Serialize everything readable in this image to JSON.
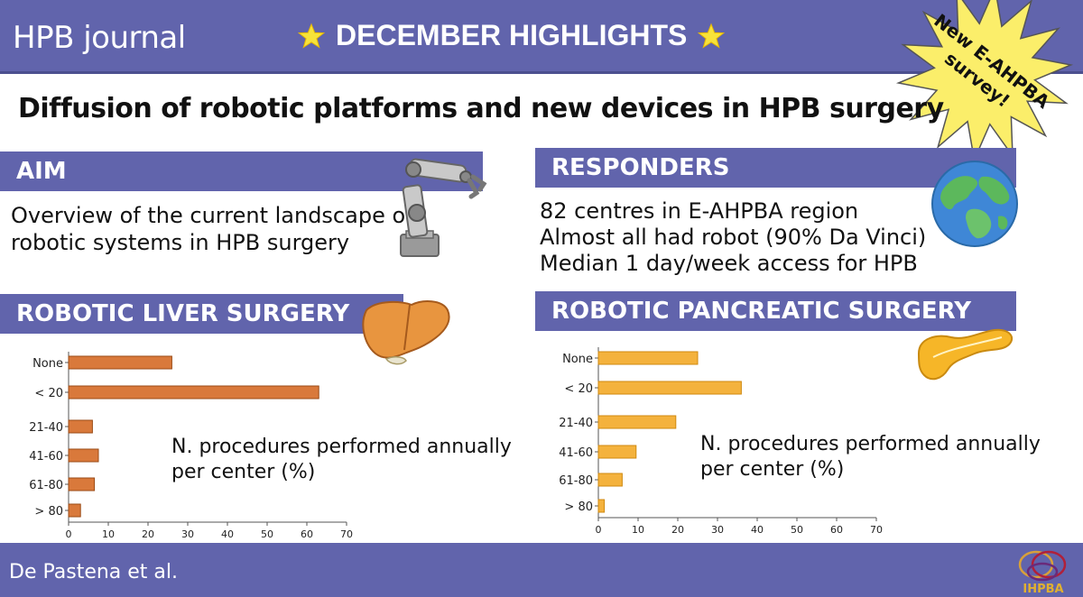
{
  "header": {
    "journal": "HPB journal",
    "highlights": "DECEMBER HIGHLIGHTS",
    "burst": [
      "New E-AHPBA",
      "survey!"
    ]
  },
  "title": "Diffusion of robotic platforms and new devices in HPB surgery",
  "aim": {
    "heading": "AIM",
    "lines": [
      "Overview of the current landscape of",
      "robotic systems in HPB surgery"
    ]
  },
  "responders": {
    "heading": "RESPONDERS",
    "lines": [
      "82 centres in E-AHPBA region",
      "Almost all had robot (90% Da Vinci)",
      "Median 1 day/week access for HPB"
    ]
  },
  "liver": {
    "heading": "ROBOTIC LIVER SURGERY",
    "caption": [
      "N. procedures performed annually",
      "per center (%)"
    ]
  },
  "pancreas": {
    "heading": "ROBOTIC PANCREATIC SURGERY",
    "caption": [
      "N. procedures performed annually",
      "per center (%)"
    ]
  },
  "footer": {
    "authors": "De Pastena et al.",
    "logo_text": "IHPBA"
  },
  "colors": {
    "band": "#6164ac",
    "liver_bar": "#d9793b",
    "pancreas_bar": "#f4b23d",
    "burst": "#fbee6a"
  },
  "chart_data": [
    {
      "type": "bar",
      "orientation": "horizontal",
      "title": "Robotic liver surgery",
      "categories": [
        "None",
        "< 20",
        "21-40",
        "41-60",
        "61-80",
        "> 80"
      ],
      "values": [
        26,
        63,
        6,
        7.5,
        6.5,
        3
      ],
      "xlabel": "N. procedures performed annually per center (%)",
      "xlim": [
        0,
        70
      ],
      "xticks": [
        0,
        10,
        20,
        30,
        40,
        50,
        60,
        70
      ]
    },
    {
      "type": "bar",
      "orientation": "horizontal",
      "title": "Robotic pancreatic surgery",
      "categories": [
        "None",
        "< 20",
        "21-40",
        "41-60",
        "61-80",
        "> 80"
      ],
      "values": [
        25,
        36,
        19.5,
        9.5,
        6,
        1.5
      ],
      "xlabel": "N. procedures performed annually per center (%)",
      "xlim": [
        0,
        70
      ],
      "xticks": [
        0,
        10,
        20,
        30,
        40,
        50,
        60,
        70
      ]
    }
  ]
}
